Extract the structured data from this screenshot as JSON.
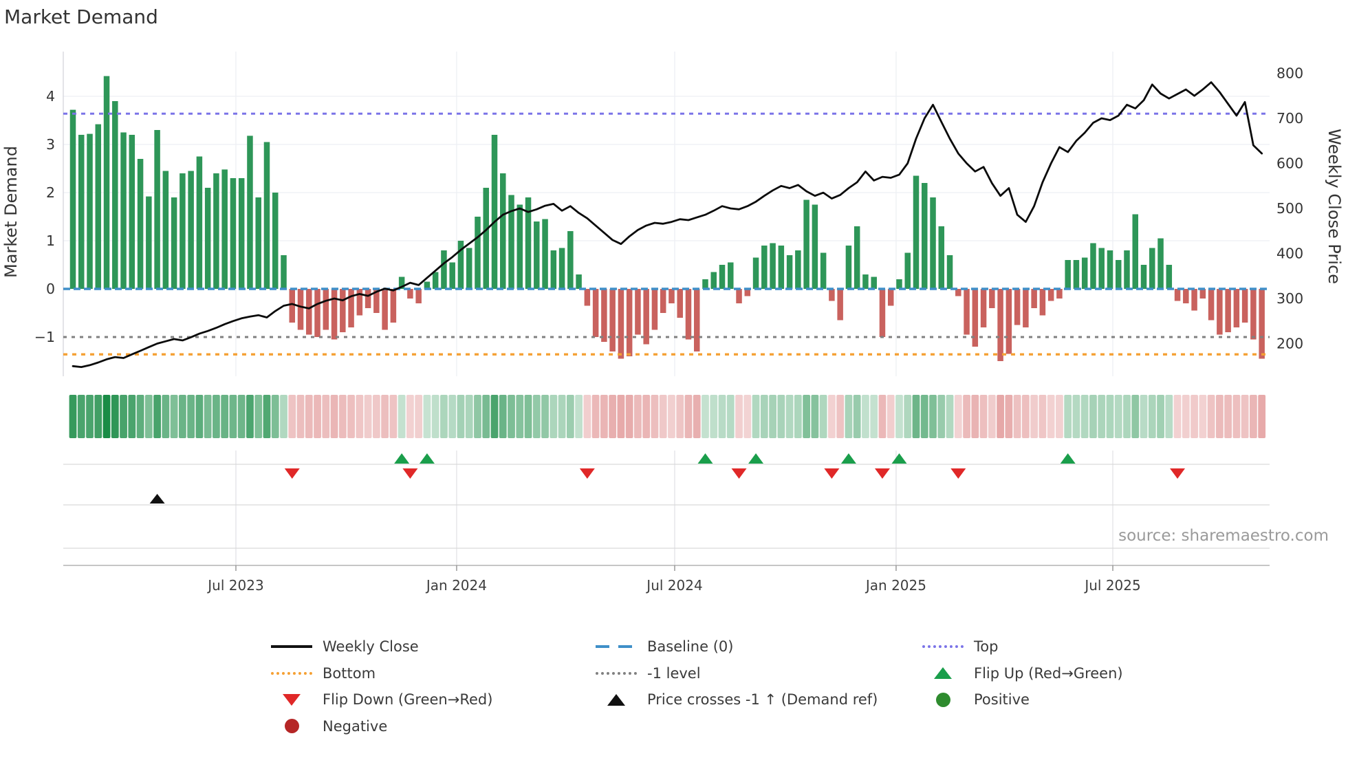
{
  "title": "Market Demand",
  "source": "source: sharemaestro.com",
  "axes": {
    "left_label": "Market Demand",
    "right_label": "Weekly Close Price",
    "left_ticks": [
      4,
      3,
      2,
      1,
      0,
      -1
    ],
    "right_ticks": [
      800,
      700,
      600,
      500,
      400,
      300,
      200
    ],
    "x_ticks": [
      {
        "label": "Jul 2023",
        "week": 19.33
      },
      {
        "label": "Jan 2024",
        "week": 45.51
      },
      {
        "label": "Jul 2024",
        "week": 71.37
      },
      {
        "label": "Jan 2025",
        "week": 97.63
      },
      {
        "label": "Jul 2025",
        "week": 123.33
      }
    ]
  },
  "chart_data": {
    "type": "bar+line",
    "x_unit": "week_index",
    "demand_ylim": [
      -1.85,
      4.93
    ],
    "price_ylim": [
      170,
      820
    ],
    "levels": {
      "top": 3.64,
      "baseline": 0,
      "minus1": -1,
      "bottom": -1.36
    },
    "demand": [
      3.72,
      3.2,
      3.22,
      3.42,
      4.42,
      3.9,
      3.25,
      3.2,
      2.7,
      1.92,
      3.3,
      2.45,
      1.9,
      2.4,
      2.45,
      2.75,
      2.1,
      2.4,
      2.48,
      2.3,
      2.3,
      3.18,
      1.9,
      3.05,
      2.0,
      0.7,
      -0.7,
      -0.85,
      -0.95,
      -1.0,
      -0.85,
      -1.05,
      -0.9,
      -0.8,
      -0.55,
      -0.4,
      -0.5,
      -0.85,
      -0.7,
      0.25,
      -0.2,
      -0.3,
      0.15,
      0.35,
      0.8,
      0.55,
      1.0,
      0.85,
      1.5,
      2.1,
      3.2,
      2.4,
      1.95,
      1.75,
      1.9,
      1.4,
      1.45,
      0.8,
      0.85,
      1.2,
      0.3,
      -0.35,
      -1.0,
      -1.1,
      -1.3,
      -1.45,
      -1.4,
      -0.95,
      -1.15,
      -0.85,
      -0.5,
      -0.3,
      -0.6,
      -1.05,
      -1.3,
      0.2,
      0.35,
      0.5,
      0.55,
      -0.3,
      -0.15,
      0.65,
      0.9,
      0.95,
      0.9,
      0.7,
      0.8,
      1.85,
      1.75,
      0.75,
      -0.25,
      -0.65,
      0.9,
      1.3,
      0.3,
      0.25,
      -1.0,
      -0.35,
      0.2,
      0.75,
      2.35,
      2.2,
      1.9,
      1.3,
      0.7,
      -0.15,
      -0.95,
      -1.2,
      -0.8,
      -0.4,
      -1.5,
      -1.35,
      -0.75,
      -0.8,
      -0.4,
      -0.55,
      -0.25,
      -0.2,
      0.6,
      0.6,
      0.65,
      0.95,
      0.85,
      0.8,
      0.6,
      0.8,
      1.55,
      0.5,
      0.85,
      1.05,
      0.5,
      -0.25,
      -0.3,
      -0.45,
      -0.2,
      -0.65,
      -0.95,
      -0.9,
      -0.8,
      -0.7,
      -1.05,
      -1.45
    ],
    "price": [
      150,
      148,
      152,
      158,
      165,
      170,
      168,
      176,
      184,
      192,
      200,
      205,
      210,
      207,
      214,
      222,
      228,
      235,
      243,
      250,
      256,
      260,
      263,
      258,
      272,
      284,
      288,
      282,
      278,
      288,
      295,
      300,
      296,
      305,
      310,
      306,
      315,
      322,
      318,
      326,
      335,
      330,
      346,
      362,
      378,
      392,
      408,
      422,
      436,
      452,
      470,
      486,
      494,
      500,
      492,
      498,
      506,
      510,
      495,
      505,
      490,
      478,
      462,
      446,
      430,
      421,
      438,
      452,
      462,
      468,
      466,
      470,
      476,
      474,
      480,
      486,
      495,
      505,
      500,
      498,
      505,
      515,
      528,
      540,
      550,
      545,
      552,
      538,
      528,
      535,
      522,
      530,
      545,
      558,
      582,
      562,
      570,
      568,
      575,
      600,
      655,
      700,
      730,
      692,
      655,
      622,
      600,
      582,
      592,
      556,
      528,
      545,
      486,
      470,
      505,
      558,
      600,
      636,
      625,
      650,
      668,
      690,
      700,
      696,
      706,
      730,
      722,
      740,
      775,
      755,
      744,
      754,
      764,
      750,
      764,
      780,
      758,
      732,
      706,
      736,
      640,
      622
    ],
    "markers": {
      "flip_up_weeks": [
        39,
        42,
        75,
        81,
        92,
        98,
        118
      ],
      "flip_down_weeks": [
        26,
        40,
        61,
        79,
        90,
        96,
        105,
        131
      ],
      "price_cross_week": 10
    },
    "heatmap": "signed demand intensity strip, one cell per week",
    "legend_position": "bottom",
    "grid": true
  },
  "colors": {
    "bar_positive": "#2e9658",
    "bar_negative": "#c9625e",
    "price_line": "#0b0b0b",
    "baseline": "#3f8fc8",
    "top_line": "#7b74e8",
    "bottom_line": "#f5a033",
    "minus1_line": "#808080",
    "flip_up": "#1a9e4b",
    "flip_down": "#e02828",
    "price_cross": "#111111",
    "positive_dot": "#2e8b2e",
    "negative_dot": "#b52626",
    "heat_green": "26,140,70",
    "heat_red": "204,78,78"
  },
  "legend": {
    "items": [
      {
        "col": 0,
        "row": 0,
        "swatch": "line",
        "color": "#111111",
        "label": "Weekly Close"
      },
      {
        "col": 0,
        "row": 1,
        "swatch": "dotted",
        "color": "#f5a033",
        "label": "Bottom"
      },
      {
        "col": 0,
        "row": 2,
        "swatch": "tri-down",
        "color": "#e02828",
        "label": "Flip Down (Green→Red)"
      },
      {
        "col": 0,
        "row": 3,
        "swatch": "circle",
        "color": "#b52626",
        "label": "Negative"
      },
      {
        "col": 1,
        "row": 0,
        "swatch": "dashed",
        "color": "#3f8fc8",
        "label": "Baseline (0)"
      },
      {
        "col": 1,
        "row": 1,
        "swatch": "dotted",
        "color": "#808080",
        "label": "-1 level"
      },
      {
        "col": 1,
        "row": 2,
        "swatch": "tri-up",
        "color": "#111111",
        "label": "Price crosses -1 ↑ (Demand ref)"
      },
      {
        "col": 2,
        "row": 0,
        "swatch": "dotted",
        "color": "#7b74e8",
        "label": "Top"
      },
      {
        "col": 2,
        "row": 1,
        "swatch": "tri-up",
        "color": "#1a9e4b",
        "label": "Flip Up (Red→Green)"
      },
      {
        "col": 2,
        "row": 2,
        "swatch": "circle",
        "color": "#2e8b2e",
        "label": "Positive"
      }
    ]
  }
}
